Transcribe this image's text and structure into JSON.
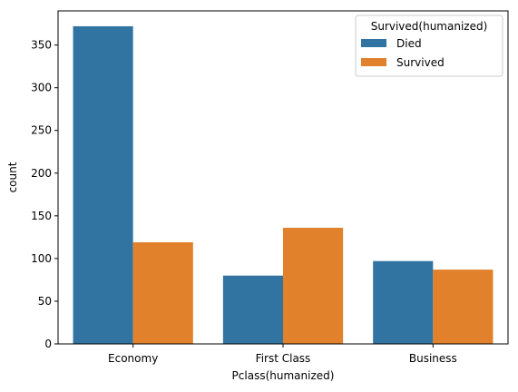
{
  "chart_data": {
    "type": "bar",
    "title": "",
    "xlabel": "Pclass(humanized)",
    "ylabel": "count",
    "categories": [
      "Economy",
      "First Class",
      "Business"
    ],
    "series": [
      {
        "name": "Died",
        "values": [
          372,
          80,
          97
        ],
        "color": "#3274a1"
      },
      {
        "name": "Survived",
        "values": [
          119,
          136,
          87
        ],
        "color": "#e1812c"
      }
    ],
    "ylim": [
      0,
      390
    ],
    "yticks": [
      0,
      50,
      100,
      150,
      200,
      250,
      300,
      350
    ],
    "legend": {
      "title": "Survived(humanized)",
      "position": "top-right"
    },
    "grid": false
  }
}
